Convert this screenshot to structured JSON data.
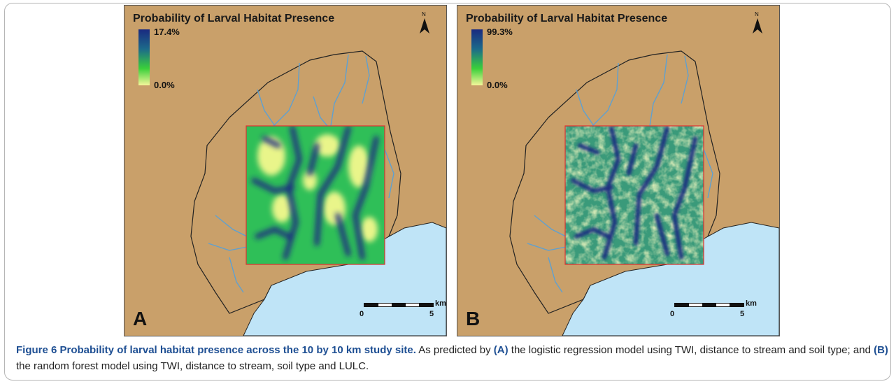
{
  "panels": [
    {
      "id": "A",
      "title": "Probability of Larval Habitat Presence",
      "legend_max": "17.4%",
      "legend_min": "0.0%",
      "letter": "A",
      "north_label": "N",
      "scale": {
        "start": "0",
        "end": "5",
        "unit": "km"
      },
      "colors": {
        "high": "#1a2a80",
        "mid": "#3aa84a",
        "low": "#f4f79a"
      }
    },
    {
      "id": "B",
      "title": "Probability of Larval Habitat Presence",
      "legend_max": "99.3%",
      "legend_min": "0.0%",
      "letter": "B",
      "north_label": "N",
      "scale": {
        "start": "0",
        "end": "5",
        "unit": "km"
      },
      "colors": {
        "high": "#1a2a80",
        "mid": "#3aa84a",
        "low": "#f4f79a"
      }
    }
  ],
  "colors": {
    "land": "#c9a06a",
    "water": "#bfe4f7",
    "stream": "#5fa0d0",
    "boundary": "#222222",
    "site": "#e03030"
  },
  "caption": {
    "bold": "Figure 6 Probability of larval habitat presence across the 10 by 10 km study site.",
    "text1": " As predicted by ",
    "a": "(A)",
    "text2": " the logistic regression model using TWI, distance to stream and soil type; and ",
    "b": "(B)",
    "text3": " the random forest model using TWI, distance to stream, soil type and LULC."
  }
}
